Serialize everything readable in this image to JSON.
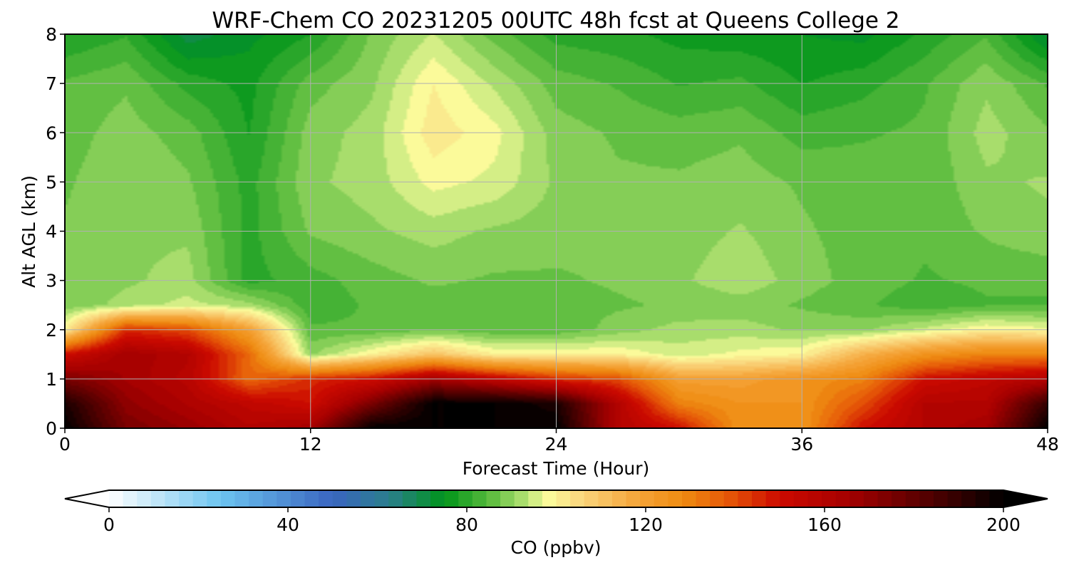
{
  "chart_data": {
    "type": "heatmap",
    "title": "WRF-Chem CO  20231205 00UTC 48h fcst at Queens College 2",
    "xlabel": "Forecast Time (Hour)",
    "ylabel": "Alt AGL (km)",
    "xlim": [
      0,
      48
    ],
    "ylim": [
      0,
      8
    ],
    "x_ticks": [
      "0",
      "12",
      "24",
      "36",
      "48"
    ],
    "y_ticks": [
      "0",
      "1",
      "2",
      "3",
      "4",
      "5",
      "6",
      "7",
      "8"
    ],
    "grid": true,
    "colorbar": {
      "label": "CO  (ppbv)",
      "range": [
        0,
        200
      ],
      "ticks": [
        "0",
        "40",
        "80",
        "120",
        "160",
        "200"
      ],
      "extend": "both",
      "placement": "bottom",
      "colors": [
        {
          "v": 0,
          "c": "#ffffff"
        },
        {
          "v": 25,
          "c": "#6cc4f0"
        },
        {
          "v": 50,
          "c": "#3a65c0"
        },
        {
          "v": 63,
          "c": "#2a7f8a"
        },
        {
          "v": 75,
          "c": "#00941a"
        },
        {
          "v": 85,
          "c": "#58bb3c"
        },
        {
          "v": 92,
          "c": "#a5dc6a"
        },
        {
          "v": 98,
          "c": "#fbfc9c"
        },
        {
          "v": 105,
          "c": "#fad880"
        },
        {
          "v": 118,
          "c": "#f5a53a"
        },
        {
          "v": 128,
          "c": "#ef8c12"
        },
        {
          "v": 138,
          "c": "#e65a08"
        },
        {
          "v": 150,
          "c": "#cc0a00"
        },
        {
          "v": 165,
          "c": "#a60000"
        },
        {
          "v": 185,
          "c": "#4a0000"
        },
        {
          "v": 200,
          "c": "#000000"
        }
      ]
    },
    "hours": [
      0,
      3,
      6,
      9,
      12,
      15,
      18,
      21,
      24,
      27,
      30,
      33,
      36,
      39,
      42,
      45,
      48
    ],
    "altitudes_km": [
      0,
      0.5,
      1,
      1.5,
      2,
      2.5,
      3,
      4,
      5,
      6,
      7,
      8
    ],
    "co_ppbv": [
      [
        200,
        175,
        168,
        160,
        165,
        200,
        200,
        200,
        200,
        160,
        150,
        125,
        125,
        150,
        160,
        165,
        200
      ],
      [
        195,
        170,
        162,
        155,
        150,
        175,
        200,
        200,
        195,
        160,
        130,
        125,
        125,
        140,
        160,
        160,
        190
      ],
      [
        175,
        165,
        158,
        135,
        145,
        150,
        165,
        155,
        145,
        140,
        120,
        120,
        125,
        130,
        150,
        155,
        160
      ],
      [
        150,
        165,
        160,
        135,
        90,
        100,
        110,
        100,
        100,
        100,
        95,
        98,
        100,
        115,
        125,
        130,
        130
      ],
      [
        100,
        145,
        140,
        120,
        85,
        85,
        87,
        85,
        85,
        89,
        92,
        92,
        90,
        90,
        95,
        100,
        98
      ],
      [
        88,
        92,
        95,
        92,
        82,
        85,
        86,
        86,
        86,
        87,
        88,
        89,
        87,
        85,
        82,
        84,
        84
      ],
      [
        88,
        90,
        92,
        80,
        83,
        86,
        88,
        87,
        87,
        88,
        90,
        93,
        89,
        86,
        84,
        85,
        85
      ],
      [
        88,
        90,
        90,
        80,
        88,
        90,
        92,
        90,
        89,
        88,
        89,
        91,
        88,
        86,
        85,
        88,
        90
      ],
      [
        87,
        90,
        88,
        80,
        90,
        92,
        98,
        96,
        90,
        88,
        88,
        89,
        87,
        86,
        85,
        90,
        91
      ],
      [
        86,
        89,
        86,
        78,
        89,
        92,
        102,
        98,
        89,
        87,
        86,
        87,
        83,
        84,
        85,
        92,
        88
      ],
      [
        85,
        87,
        80,
        77,
        86,
        90,
        100,
        93,
        86,
        84,
        81,
        82,
        78,
        80,
        84,
        90,
        84
      ],
      [
        78,
        81,
        70,
        74,
        78,
        88,
        94,
        86,
        80,
        79,
        77,
        76,
        75,
        74,
        79,
        84,
        71
      ]
    ]
  }
}
